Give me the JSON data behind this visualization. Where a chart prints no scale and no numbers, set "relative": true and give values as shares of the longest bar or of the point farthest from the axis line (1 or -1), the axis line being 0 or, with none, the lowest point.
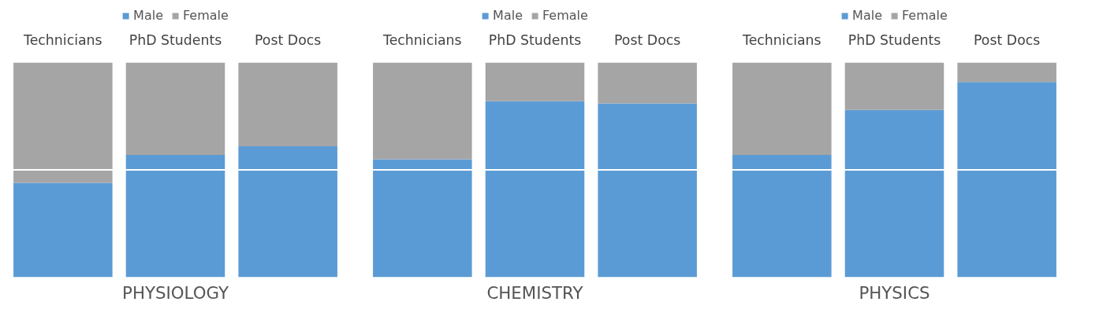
{
  "chart_data": [
    {
      "type": "bar",
      "title": "PHYSIOLOGY",
      "categories": [
        "Technicians",
        "PhD Students",
        "Post Docs"
      ],
      "stacked": true,
      "relative": true,
      "legend": "top",
      "series": [
        {
          "name": "Male",
          "color": "#5b9bd5",
          "values": [
            0.44,
            0.57,
            0.61
          ]
        },
        {
          "name": "Female",
          "color": "#a5a5a5",
          "values": [
            0.56,
            0.43,
            0.39
          ]
        }
      ],
      "ref_lines": [
        {
          "axis": "y",
          "value": 0.5,
          "color": "#ffffff"
        }
      ]
    },
    {
      "type": "bar",
      "title": "CHEMISTRY",
      "categories": [
        "Technicians",
        "PhD Students",
        "Post Docs"
      ],
      "stacked": true,
      "relative": true,
      "legend": "top",
      "series": [
        {
          "name": "Male",
          "color": "#5b9bd5",
          "values": [
            0.55,
            0.82,
            0.81
          ]
        },
        {
          "name": "Female",
          "color": "#a5a5a5",
          "values": [
            0.45,
            0.18,
            0.19
          ]
        }
      ],
      "ref_lines": [
        {
          "axis": "y",
          "value": 0.5,
          "color": "#ffffff"
        }
      ]
    },
    {
      "type": "bar",
      "title": "PHYSICS",
      "categories": [
        "Technicians",
        "PhD Students",
        "Post Docs"
      ],
      "stacked": true,
      "relative": true,
      "legend": "top",
      "series": [
        {
          "name": "Male",
          "color": "#5b9bd5",
          "values": [
            0.57,
            0.78,
            0.91
          ]
        },
        {
          "name": "Female",
          "color": "#a5a5a5",
          "values": [
            0.43,
            0.22,
            0.09
          ]
        }
      ],
      "ref_lines": [
        {
          "axis": "y",
          "value": 0.5,
          "color": "#ffffff"
        }
      ]
    }
  ]
}
